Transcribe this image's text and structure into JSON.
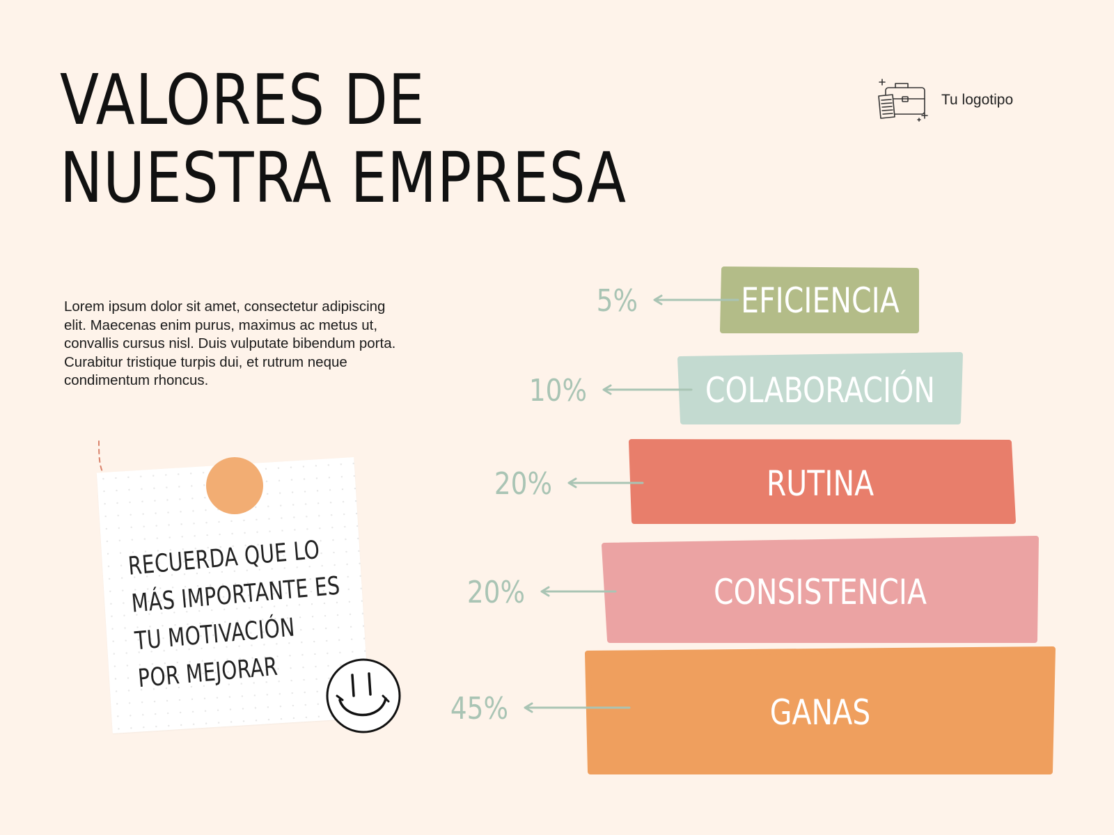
{
  "title": {
    "line1": "VALORES DE",
    "line2": "NUESTRA EMPRESA"
  },
  "logo": {
    "text": "Tu logotipo",
    "icon": "briefcase-icon"
  },
  "body_text": "Lorem ipsum dolor sit amet, consectetur adipiscing elit. Maecenas enim purus, maximus ac metus ut, convallis cursus nisl. Duis vulputate bibendum porta. Curabitur tristique turpis dui, et rutrum neque condimentum rhoncus.",
  "note": {
    "lines": [
      "RECUERDA QUE LO",
      "MÁS IMPORTANTE ES",
      "TU MOTIVACIÓN",
      "POR MEJORAR"
    ],
    "icon": "smiley-icon"
  },
  "colors": {
    "background": "#FEF3EA",
    "arrow": "#A9C4B4",
    "percent_text": "#A9C4B4"
  },
  "chart_data": {
    "type": "bar",
    "title": "",
    "categories": [
      "EFICIENCIA",
      "COLABORACIÓN",
      "RUTINA",
      "CONSISTENCIA",
      "GANAS"
    ],
    "values": [
      5,
      10,
      20,
      20,
      45
    ],
    "value_labels": [
      "5%",
      "10%",
      "20%",
      "20%",
      "45%"
    ],
    "colors": [
      "#B3BC88",
      "#C3DAD0",
      "#E87E6B",
      "#EBA3A3",
      "#EF9F5E"
    ],
    "unit": "%",
    "grid": false,
    "legend": "none"
  }
}
